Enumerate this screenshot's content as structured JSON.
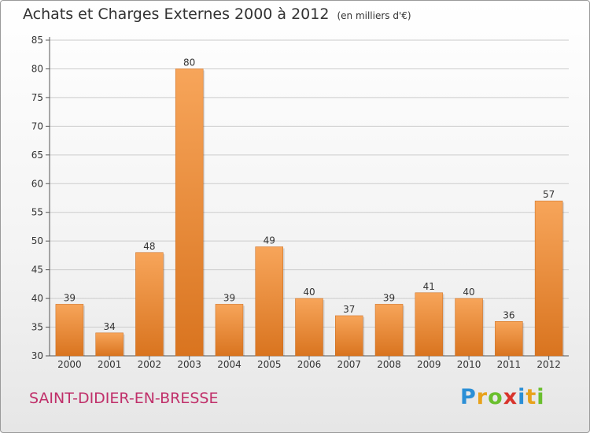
{
  "header": {
    "title": "Achats et Charges Externes 2000 à 2012",
    "unit": "(en milliers d'€)"
  },
  "footer": {
    "commune": "SAINT-DIDIER-EN-BRESSE",
    "logo_letters": [
      "P",
      "r",
      "o",
      "x",
      "i",
      "t",
      "i"
    ]
  },
  "colors": {
    "bar_top": "#f7a55a",
    "bar_bottom": "#d9741f",
    "commune": "#c0306a",
    "grid": "#cccccc"
  },
  "chart_data": {
    "type": "bar",
    "categories": [
      "2000",
      "2001",
      "2002",
      "2003",
      "2004",
      "2005",
      "2006",
      "2007",
      "2008",
      "2009",
      "2010",
      "2011",
      "2012"
    ],
    "values": [
      39,
      34,
      48,
      80,
      39,
      49,
      40,
      37,
      39,
      41,
      40,
      36,
      57
    ],
    "data_labels": [
      "39",
      "34",
      "48",
      "80",
      "39",
      "49",
      "40",
      "37",
      "39",
      "41",
      "40",
      "36",
      "57"
    ],
    "y_ticks": [
      "30",
      "35",
      "40",
      "45",
      "50",
      "55",
      "60",
      "65",
      "70",
      "75",
      "80",
      "85"
    ],
    "ylim": [
      30,
      85
    ],
    "grid": true,
    "legend": "none"
  }
}
